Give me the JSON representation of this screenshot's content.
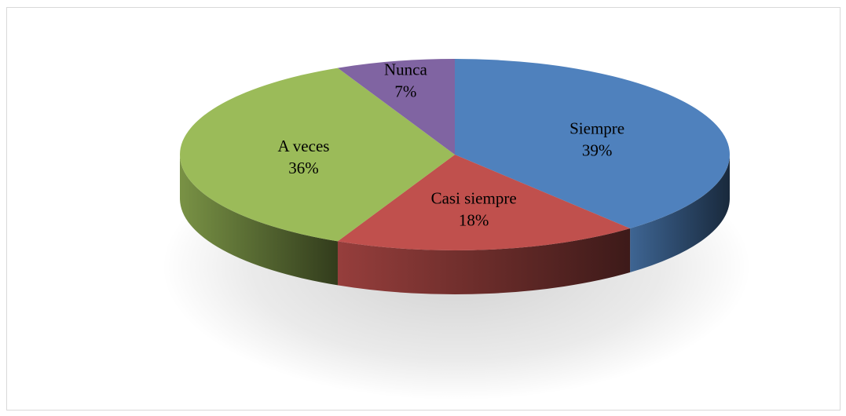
{
  "chart_data": {
    "type": "pie",
    "title": "",
    "categories": [
      "Siempre",
      "Casi siempre",
      "A veces",
      "Nunca"
    ],
    "values": [
      39,
      18,
      36,
      7
    ],
    "labels": [
      "39%",
      "18%",
      "36%",
      "7%"
    ],
    "colors": [
      "#4f81bd",
      "#c0504d",
      "#9bbb59",
      "#8064a2"
    ],
    "style": "3d",
    "legend": "none"
  }
}
